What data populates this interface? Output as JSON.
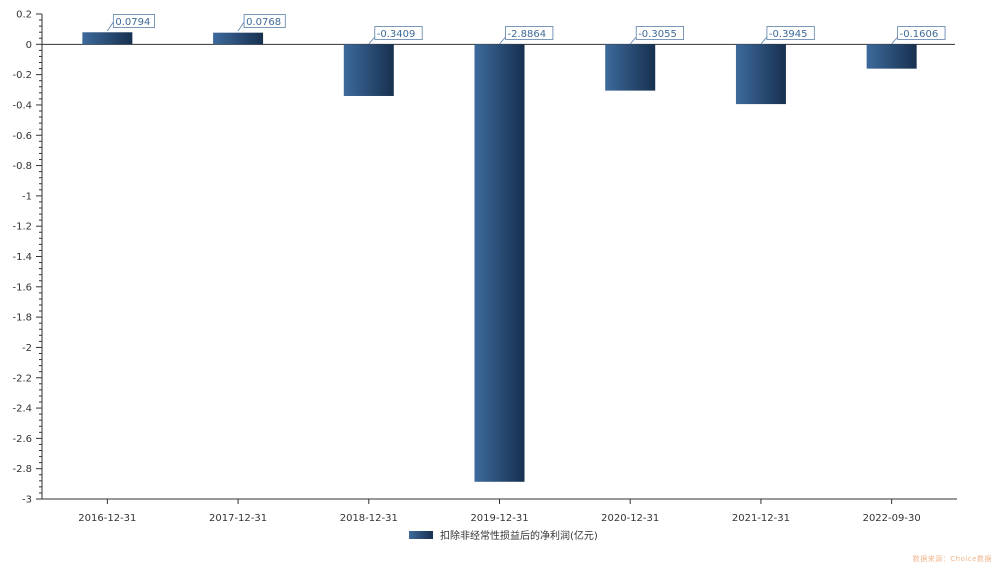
{
  "chart_data": {
    "type": "bar",
    "categories": [
      "2016-12-31",
      "2017-12-31",
      "2018-12-31",
      "2019-12-31",
      "2020-12-31",
      "2021-12-31",
      "2022-09-30"
    ],
    "series": [
      {
        "name": "扣除非经常性损益后的净利润(亿元)",
        "values": [
          0.0794,
          0.0768,
          -0.3409,
          -2.8864,
          -0.3055,
          -0.3945,
          -0.1606
        ]
      }
    ],
    "data_labels": [
      "0.0794",
      "0.0768",
      "-0.3409",
      "-2.8864",
      "-0.3055",
      "-0.3945",
      "-0.1606"
    ],
    "ylim": [
      -3,
      0.2
    ],
    "yticks": [
      0.2,
      0,
      -0.2,
      -0.4,
      -0.6,
      -0.8,
      -1,
      -1.2,
      -1.4,
      -1.6,
      -1.8,
      -2,
      -2.2,
      -2.4,
      -2.6,
      -2.8,
      -3
    ],
    "ytick_labels": [
      "0.2",
      "0",
      "-0.2",
      "-0.4",
      "-0.6",
      "-0.8",
      "-1",
      "-1.2",
      "-1.4",
      "-1.6",
      "-1.8",
      "-2",
      "-2.2",
      "-2.4",
      "-2.6",
      "-2.8",
      "-3"
    ],
    "grid": false,
    "legend_position": "bottom-center",
    "colors": {
      "bar_light": "#3d6a9c",
      "bar_dark": "#17304f",
      "label": "#3f6b98",
      "axis": "#333333"
    }
  },
  "watermark": "数据来源：Choice数据"
}
